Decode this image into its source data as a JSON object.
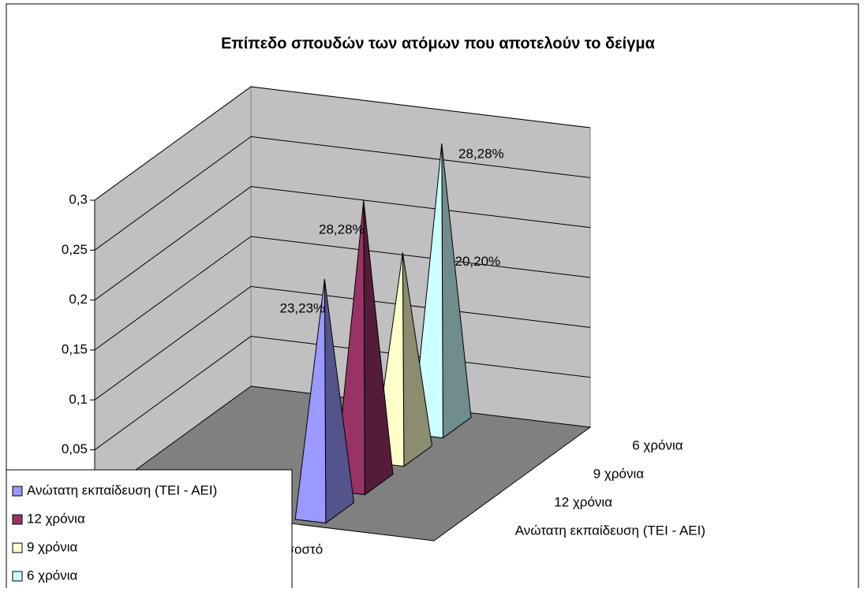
{
  "chart_data": {
    "type": "pyramid3d",
    "title": "Επίπεδο σπουδών των ατόμων που αποτελούν το δείγμα",
    "categories": [
      "Ποσοστό"
    ],
    "series": [
      {
        "name": "Ανώτατη εκπαίδευση (ΤΕΙ - ΑΕΙ)",
        "color": "#9999ff",
        "values": [
          0.2323
        ],
        "value_labels": [
          "23,23%"
        ]
      },
      {
        "name": "12 χρόνια",
        "color": "#993366",
        "values": [
          0.2828
        ],
        "value_labels": [
          "28,28%"
        ]
      },
      {
        "name": "9 χρόνια",
        "color": "#ffffcc",
        "values": [
          0.202
        ],
        "value_labels": [
          "20,20%"
        ]
      },
      {
        "name": "6 χρόνια",
        "color": "#ccffff",
        "values": [
          0.2828
        ],
        "value_labels": [
          "28,28%"
        ]
      }
    ],
    "ylim": [
      0,
      0.3
    ],
    "yticks": [
      {
        "value": 0.05,
        "label": "0,05"
      },
      {
        "value": 0.1,
        "label": "0,1"
      },
      {
        "value": 0.15,
        "label": "0,15"
      },
      {
        "value": 0.2,
        "label": "0,2"
      },
      {
        "value": 0.25,
        "label": "0,25"
      },
      {
        "value": 0.3,
        "label": "0,3"
      }
    ],
    "grid": true,
    "legend": "bottom-left"
  }
}
